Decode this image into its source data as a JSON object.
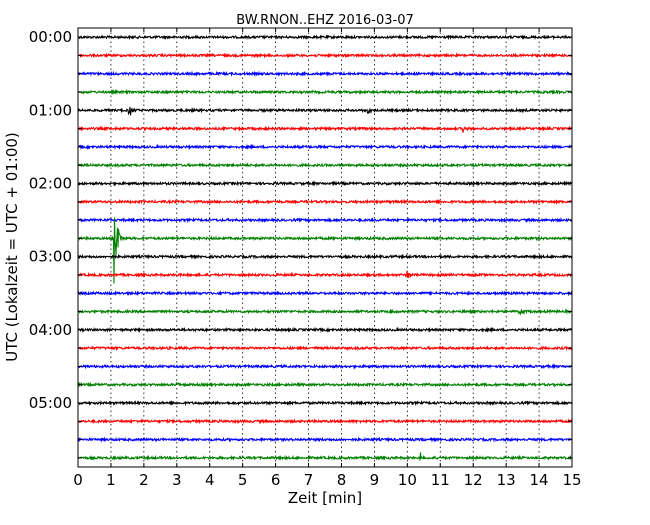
{
  "chart_data": {
    "type": "line",
    "title": "BW.RNON..EHZ 2016-03-07",
    "xlabel": "Zeit  [min]",
    "ylabel": "UTC (Lokalzeit = UTC + 01:00)",
    "xlim": [
      0,
      15
    ],
    "x_ticks": [
      "0",
      "1",
      "2",
      "3",
      "4",
      "5",
      "6",
      "7",
      "8",
      "9",
      "10",
      "11",
      "12",
      "13",
      "14",
      "15"
    ],
    "y_ticks": [
      "00:00",
      "01:00",
      "02:00",
      "03:00",
      "04:00",
      "05:00"
    ],
    "grid": true,
    "trace_interval_minutes": 15,
    "colors": {
      "cycle": [
        "#000000",
        "#ff0000",
        "#0000ff",
        "#008000"
      ]
    },
    "traces": [
      {
        "start": "00:00",
        "color": "#000000"
      },
      {
        "start": "00:15",
        "color": "#ff0000"
      },
      {
        "start": "00:30",
        "color": "#0000ff"
      },
      {
        "start": "00:45",
        "color": "#008000"
      },
      {
        "start": "01:00",
        "color": "#000000",
        "events": [
          {
            "t": 1.55,
            "amp": 0.5
          },
          {
            "t": 8.8,
            "amp": 0.2
          }
        ]
      },
      {
        "start": "01:15",
        "color": "#ff0000",
        "events": [
          {
            "t": 11.7,
            "amp": 0.2
          }
        ]
      },
      {
        "start": "01:30",
        "color": "#0000ff"
      },
      {
        "start": "01:45",
        "color": "#008000"
      },
      {
        "start": "02:00",
        "color": "#000000"
      },
      {
        "start": "02:15",
        "color": "#ff0000"
      },
      {
        "start": "02:30",
        "color": "#0000ff"
      },
      {
        "start": "02:45",
        "color": "#008000",
        "events": [
          {
            "t": 1.1,
            "amp": 3.5
          }
        ]
      },
      {
        "start": "03:00",
        "color": "#000000"
      },
      {
        "start": "03:15",
        "color": "#ff0000",
        "events": [
          {
            "t": 10.0,
            "amp": 0.3
          }
        ]
      },
      {
        "start": "03:30",
        "color": "#0000ff"
      },
      {
        "start": "03:45",
        "color": "#008000",
        "events": [
          {
            "t": 9.5,
            "amp": 0.2
          },
          {
            "t": 13.4,
            "amp": 0.25
          }
        ]
      },
      {
        "start": "04:00",
        "color": "#000000"
      },
      {
        "start": "04:15",
        "color": "#ff0000"
      },
      {
        "start": "04:30",
        "color": "#0000ff"
      },
      {
        "start": "04:45",
        "color": "#008000",
        "events": [
          {
            "t": 3.0,
            "amp": 0.3
          }
        ]
      },
      {
        "start": "05:00",
        "color": "#000000"
      },
      {
        "start": "05:15",
        "color": "#ff0000"
      },
      {
        "start": "05:30",
        "color": "#0000ff"
      },
      {
        "start": "05:45",
        "color": "#008000",
        "events": [
          {
            "t": 10.4,
            "amp": 0.25
          }
        ]
      }
    ]
  }
}
